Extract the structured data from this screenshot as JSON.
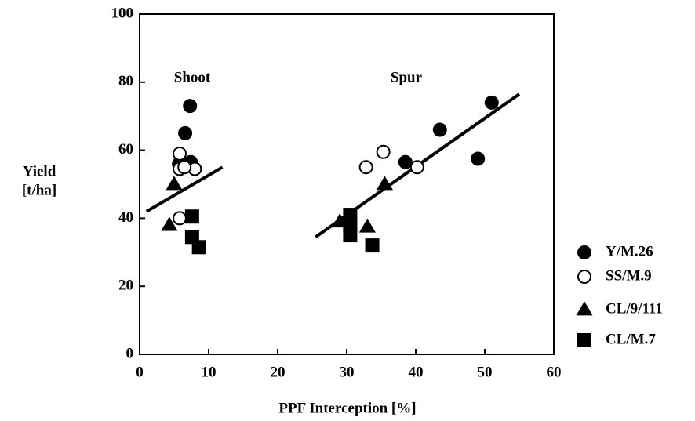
{
  "chart_data": {
    "type": "scatter",
    "xlabel": "PPF Interception [%]",
    "ylabel": [
      "Yield",
      "[t/ha]"
    ],
    "xlim": [
      0,
      60
    ],
    "xticks": [
      0,
      10,
      20,
      30,
      40,
      50,
      60
    ],
    "ylim": [
      0,
      100
    ],
    "yticks": [
      0,
      20,
      40,
      60,
      80,
      100
    ],
    "color": "#000000",
    "legend": "right",
    "annotations": [
      "Shoot",
      "Spur"
    ],
    "series": [
      {
        "name": "Y/M.26",
        "marker": "circle",
        "filled": true,
        "x": [
          7.3,
          6.6,
          5.7,
          7.4,
          38.5,
          43.5,
          49,
          51
        ],
        "values": [
          73,
          65,
          56,
          56.5,
          56.5,
          66,
          57.5,
          74
        ]
      },
      {
        "name": "SS/M.9",
        "marker": "circle",
        "filled": false,
        "x": [
          5.8,
          5.8,
          8,
          6.5,
          5.8,
          32.8,
          35.3,
          40.2
        ],
        "values": [
          59,
          54.5,
          54.5,
          55,
          40,
          55,
          59.5,
          55
        ]
      },
      {
        "name": "CL/9/111",
        "marker": "triangle",
        "filled": true,
        "x": [
          5,
          4.3,
          29,
          33,
          35.5
        ],
        "values": [
          50,
          38,
          39,
          37.5,
          50
        ]
      },
      {
        "name": "CL/M.7",
        "marker": "square",
        "filled": true,
        "x": [
          7.6,
          7.6,
          8.6,
          30.5,
          30.5,
          30.5,
          33.7
        ],
        "values": [
          40.5,
          34.5,
          31.5,
          41,
          38,
          35,
          32
        ]
      }
    ],
    "lines": [
      {
        "x": [
          1,
          12
        ],
        "values": [
          42,
          55
        ]
      },
      {
        "x": [
          25.5,
          55
        ],
        "values": [
          34.5,
          76.5
        ]
      }
    ]
  }
}
